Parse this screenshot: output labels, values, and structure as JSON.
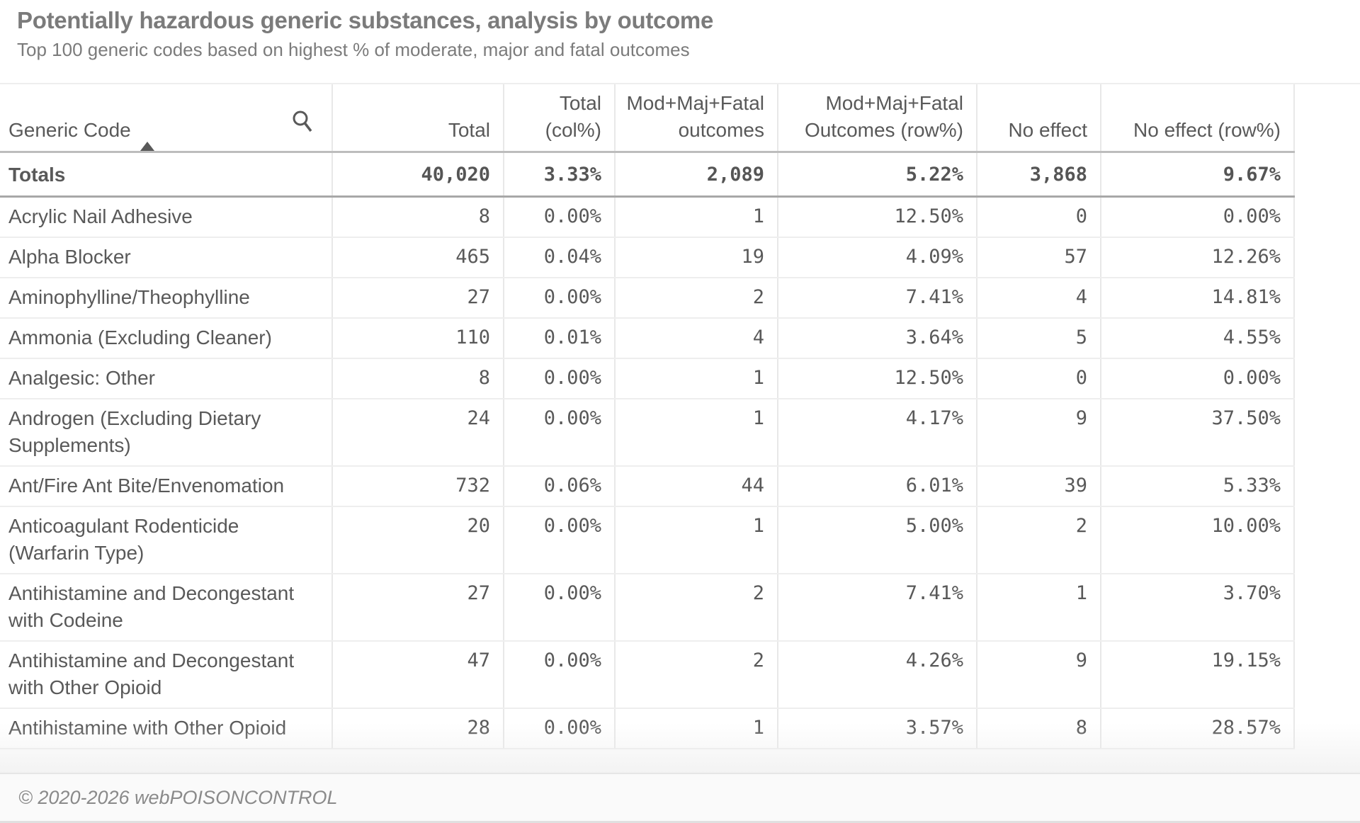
{
  "title": "Potentially hazardous generic substances, analysis by outcome",
  "subtitle": "Top 100 generic codes based on highest % of moderate, major and fatal outcomes",
  "columns": [
    "Generic Code",
    "Total",
    "Total (col%)",
    "Mod+Maj+Fatal outcomes",
    "Mod+Maj+Fatal Outcomes (row%)",
    "No effect",
    "No effect (row%)"
  ],
  "icons": {
    "search": "search-icon",
    "sort": "sort-ascending-icon"
  },
  "totals": [
    "Totals",
    "40,020",
    "3.33%",
    "2,089",
    "5.22%",
    "3,868",
    "9.67%"
  ],
  "rows": [
    [
      "Acrylic Nail Adhesive",
      "8",
      "0.00%",
      "1",
      "12.50%",
      "0",
      "0.00%"
    ],
    [
      "Alpha Blocker",
      "465",
      "0.04%",
      "19",
      "4.09%",
      "57",
      "12.26%"
    ],
    [
      "Aminophylline/Theophylline",
      "27",
      "0.00%",
      "2",
      "7.41%",
      "4",
      "14.81%"
    ],
    [
      "Ammonia (Excluding Cleaner)",
      "110",
      "0.01%",
      "4",
      "3.64%",
      "5",
      "4.55%"
    ],
    [
      "Analgesic: Other",
      "8",
      "0.00%",
      "1",
      "12.50%",
      "0",
      "0.00%"
    ],
    [
      "Androgen (Excluding Dietary Supplements)",
      "24",
      "0.00%",
      "1",
      "4.17%",
      "9",
      "37.50%"
    ],
    [
      "Ant/Fire Ant Bite/Envenomation",
      "732",
      "0.06%",
      "44",
      "6.01%",
      "39",
      "5.33%"
    ],
    [
      "Anticoagulant Rodenticide (Warfarin Type)",
      "20",
      "0.00%",
      "1",
      "5.00%",
      "2",
      "10.00%"
    ],
    [
      "Antihistamine and Decongestant with Codeine",
      "27",
      "0.00%",
      "2",
      "7.41%",
      "1",
      "3.70%"
    ],
    [
      "Antihistamine and Decongestant with Other Opioid",
      "47",
      "0.00%",
      "2",
      "4.26%",
      "9",
      "19.15%"
    ],
    [
      "Antihistamine with Other Opioid",
      "28",
      "0.00%",
      "1",
      "3.57%",
      "8",
      "28.57%"
    ]
  ],
  "footer": "© 2020-2026 webPOISONCONTROL"
}
